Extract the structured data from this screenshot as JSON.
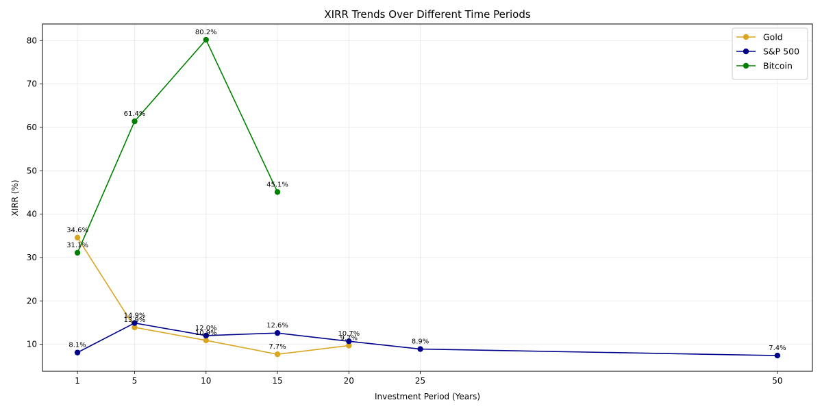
{
  "chart_data": {
    "type": "line",
    "title": "XIRR Trends Over Different Time Periods",
    "xlabel": "Investment Period (Years)",
    "ylabel": "XIRR (%)",
    "xlim": [
      -1.45,
      52.45
    ],
    "ylim": [
      3.78,
      83.84
    ],
    "xticks": [
      1,
      5,
      10,
      15,
      20,
      25,
      50
    ],
    "yticks": [
      10,
      20,
      30,
      40,
      50,
      60,
      70,
      80
    ],
    "grid": true,
    "legend_position": "top-right",
    "series": [
      {
        "name": "Gold",
        "color": "#DAA520",
        "x": [
          1,
          5,
          10,
          15,
          20
        ],
        "y": [
          34.6,
          13.9,
          10.9,
          7.7,
          9.7
        ],
        "labels": [
          "34.6%",
          "13.9%",
          "10.9%",
          "7.7%",
          "9.7%"
        ]
      },
      {
        "name": "S&P 500",
        "color": "#00008B",
        "x": [
          1,
          5,
          10,
          15,
          20,
          25,
          50
        ],
        "y": [
          8.1,
          14.9,
          12.0,
          12.6,
          10.7,
          8.9,
          7.4
        ],
        "labels": [
          "8.1%",
          "14.9%",
          "12.0%",
          "12.6%",
          "10.7%",
          "8.9%",
          "7.4%"
        ]
      },
      {
        "name": "Bitcoin",
        "color": "#008000",
        "x": [
          1,
          5,
          10,
          15
        ],
        "y": [
          31.1,
          61.4,
          80.2,
          45.1
        ],
        "labels": [
          "31.1%",
          "61.4%",
          "80.2%",
          "45.1%"
        ]
      }
    ]
  }
}
